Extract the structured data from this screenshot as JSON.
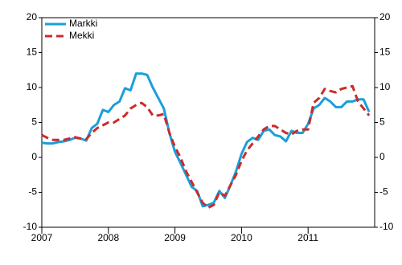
{
  "chart_data": {
    "type": "line",
    "x": [
      2007,
      2007.083,
      2007.167,
      2007.25,
      2007.333,
      2007.417,
      2007.5,
      2007.583,
      2007.667,
      2007.75,
      2007.833,
      2007.917,
      2008,
      2008.083,
      2008.167,
      2008.25,
      2008.333,
      2008.417,
      2008.5,
      2008.583,
      2008.667,
      2008.75,
      2008.833,
      2008.917,
      2009,
      2009.083,
      2009.167,
      2009.25,
      2009.333,
      2009.417,
      2009.5,
      2009.583,
      2009.667,
      2009.75,
      2009.833,
      2009.917,
      2010,
      2010.083,
      2010.167,
      2010.25,
      2010.333,
      2010.417,
      2010.5,
      2010.583,
      2010.667,
      2010.75,
      2010.833,
      2010.917,
      2011,
      2011.083,
      2011.167,
      2011.25,
      2011.333,
      2011.417,
      2011.5,
      2011.583,
      2011.667,
      2011.75,
      2011.833,
      2011.917
    ],
    "series": [
      {
        "name": "Markki",
        "color": "#1a9fdb",
        "dash": false,
        "values": [
          2.1,
          2.0,
          2.0,
          2.2,
          2.3,
          2.5,
          2.8,
          2.7,
          2.4,
          4.2,
          4.8,
          6.8,
          6.5,
          7.5,
          8.0,
          9.9,
          9.6,
          12.0,
          12.0,
          11.8,
          10.0,
          8.5,
          7.0,
          3.5,
          0.8,
          -0.8,
          -2.5,
          -4.2,
          -4.8,
          -7.0,
          -6.8,
          -6.5,
          -4.8,
          -5.8,
          -4.0,
          -2.0,
          0.5,
          2.2,
          2.8,
          2.5,
          3.8,
          4.0,
          3.2,
          3.0,
          2.3,
          3.8,
          3.5,
          3.5,
          4.8,
          7.0,
          7.5,
          8.5,
          8.0,
          7.2,
          7.2,
          8.0,
          8.0,
          8.3,
          8.3,
          6.5
        ]
      },
      {
        "name": "Mekki",
        "color": "#cc2b2b",
        "dash": true,
        "values": [
          3.2,
          2.8,
          2.5,
          2.5,
          2.5,
          2.7,
          2.9,
          2.7,
          2.6,
          3.5,
          4.2,
          4.6,
          5.0,
          5.0,
          5.5,
          6.0,
          7.0,
          7.5,
          7.8,
          7.2,
          6.0,
          6.0,
          6.2,
          3.5,
          1.5,
          0.0,
          -2.0,
          -3.5,
          -5.0,
          -6.5,
          -7.2,
          -6.8,
          -5.0,
          -5.5,
          -4.0,
          -2.5,
          -0.5,
          1.0,
          2.0,
          3.0,
          4.0,
          4.5,
          4.5,
          4.0,
          3.5,
          3.3,
          3.8,
          4.0,
          4.0,
          7.8,
          8.5,
          9.8,
          9.5,
          9.3,
          9.8,
          10.0,
          10.2,
          8.0,
          7.0,
          6.0
        ]
      }
    ],
    "xlim": [
      2007,
      2012
    ],
    "xticks": [
      2007,
      2008,
      2009,
      2010,
      2011
    ],
    "ylim": [
      -10,
      20
    ],
    "yticks": [
      -10,
      -5,
      0,
      5,
      10,
      15,
      20
    ],
    "y2lim": [
      -10,
      20
    ],
    "y2ticks": [
      -10,
      -5,
      0,
      5,
      10,
      15,
      20
    ],
    "legend": "upper left"
  }
}
